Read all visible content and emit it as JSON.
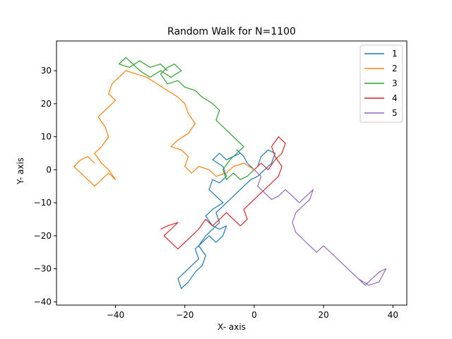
{
  "chart_data": {
    "type": "line",
    "title": "Random Walk for N=1100",
    "xlabel": "X- axis",
    "ylabel": "Y- axis",
    "xlim": [
      -57,
      44
    ],
    "ylim": [
      -41,
      39
    ],
    "xticks": [
      -40,
      -20,
      0,
      20,
      40
    ],
    "yticks": [
      -40,
      -30,
      -20,
      -10,
      0,
      10,
      20,
      30
    ],
    "grid": false,
    "legend": "top-right",
    "series": [
      {
        "name": "1",
        "color": "#1f77b4",
        "points": [
          [
            0,
            0
          ],
          [
            -2,
            2
          ],
          [
            -3,
            4
          ],
          [
            -5,
            6
          ],
          [
            -4,
            5
          ],
          [
            -6,
            4
          ],
          [
            -8,
            3
          ],
          [
            -10,
            5
          ],
          [
            -12,
            3
          ],
          [
            -9,
            1
          ],
          [
            -8,
            -2
          ],
          [
            -10,
            -4
          ],
          [
            -12,
            -3
          ],
          [
            -13,
            -6
          ],
          [
            -11,
            -8
          ],
          [
            -9,
            -10
          ],
          [
            -12,
            -12
          ],
          [
            -14,
            -14
          ],
          [
            -12,
            -17
          ],
          [
            -10,
            -18
          ],
          [
            -8,
            -17
          ],
          [
            -9,
            -20
          ],
          [
            -11,
            -22
          ],
          [
            -13,
            -20
          ],
          [
            -15,
            -22
          ],
          [
            -17,
            -24
          ],
          [
            -16,
            -27
          ],
          [
            -18,
            -29
          ],
          [
            -20,
            -31
          ],
          [
            -22,
            -33
          ],
          [
            -21,
            -36
          ],
          [
            -19,
            -34
          ],
          [
            -17,
            -31
          ],
          [
            -15,
            -29
          ],
          [
            -14,
            -26
          ],
          [
            -16,
            -23
          ],
          [
            -14,
            -20
          ],
          [
            -12,
            -18
          ],
          [
            -10,
            -16
          ],
          [
            -11,
            -13
          ],
          [
            -9,
            -11
          ],
          [
            -7,
            -9
          ],
          [
            -5,
            -7
          ],
          [
            -3,
            -5
          ],
          [
            -1,
            -3
          ],
          [
            1,
            -2
          ],
          [
            3,
            0
          ],
          [
            5,
            2
          ],
          [
            6,
            5
          ],
          [
            4,
            6
          ],
          [
            2,
            4
          ],
          [
            1,
            1
          ]
        ]
      },
      {
        "name": "2",
        "color": "#ff7f0e",
        "points": [
          [
            0,
            0
          ],
          [
            -3,
            2
          ],
          [
            -6,
            1
          ],
          [
            -8,
            -1
          ],
          [
            -11,
            -2
          ],
          [
            -13,
            0
          ],
          [
            -16,
            1
          ],
          [
            -18,
            -1
          ],
          [
            -20,
            1
          ],
          [
            -19,
            4
          ],
          [
            -21,
            6
          ],
          [
            -24,
            7
          ],
          [
            -22,
            9
          ],
          [
            -19,
            11
          ],
          [
            -17,
            14
          ],
          [
            -19,
            17
          ],
          [
            -20,
            20
          ],
          [
            -22,
            22
          ],
          [
            -25,
            24
          ],
          [
            -28,
            26
          ],
          [
            -31,
            28
          ],
          [
            -34,
            29
          ],
          [
            -37,
            30
          ],
          [
            -39,
            28
          ],
          [
            -41,
            26
          ],
          [
            -42,
            23
          ],
          [
            -40,
            21
          ],
          [
            -43,
            18
          ],
          [
            -45,
            16
          ],
          [
            -43,
            13
          ],
          [
            -42,
            10
          ],
          [
            -44,
            7
          ],
          [
            -46,
            5
          ],
          [
            -44,
            2
          ],
          [
            -42,
            0
          ],
          [
            -40,
            -3
          ],
          [
            -42,
            -1
          ],
          [
            -44,
            -3
          ],
          [
            -46,
            -5
          ],
          [
            -48,
            -3
          ],
          [
            -50,
            -1
          ],
          [
            -52,
            1
          ],
          [
            -50,
            3
          ],
          [
            -48,
            4
          ],
          [
            -46,
            2
          ]
        ]
      },
      {
        "name": "3",
        "color": "#2ca02c",
        "points": [
          [
            0,
            0
          ],
          [
            -2,
            -2
          ],
          [
            -4,
            -3
          ],
          [
            -6,
            -1
          ],
          [
            -8,
            -3
          ],
          [
            -9,
            0
          ],
          [
            -7,
            3
          ],
          [
            -5,
            5
          ],
          [
            -3,
            7
          ],
          [
            -5,
            9
          ],
          [
            -7,
            11
          ],
          [
            -9,
            13
          ],
          [
            -11,
            15
          ],
          [
            -10,
            18
          ],
          [
            -12,
            20
          ],
          [
            -15,
            22
          ],
          [
            -17,
            24
          ],
          [
            -20,
            25
          ],
          [
            -22,
            27
          ],
          [
            -25,
            26
          ],
          [
            -27,
            29
          ],
          [
            -25,
            31
          ],
          [
            -23,
            32
          ],
          [
            -21,
            30
          ],
          [
            -24,
            28
          ],
          [
            -27,
            30
          ],
          [
            -30,
            28
          ],
          [
            -33,
            30
          ],
          [
            -35,
            32
          ],
          [
            -37,
            34
          ],
          [
            -39,
            32
          ],
          [
            -36,
            31
          ],
          [
            -33,
            33
          ],
          [
            -30,
            31
          ],
          [
            -27,
            32
          ],
          [
            -25,
            30
          ]
        ]
      },
      {
        "name": "4",
        "color": "#d62728",
        "points": [
          [
            0,
            0
          ],
          [
            2,
            2
          ],
          [
            4,
            0
          ],
          [
            6,
            3
          ],
          [
            8,
            5
          ],
          [
            9,
            8
          ],
          [
            7,
            10
          ],
          [
            5,
            7
          ],
          [
            6,
            4
          ],
          [
            8,
            1
          ],
          [
            7,
            -2
          ],
          [
            5,
            -4
          ],
          [
            3,
            -6
          ],
          [
            1,
            -8
          ],
          [
            -1,
            -10
          ],
          [
            -3,
            -12
          ],
          [
            -2,
            -15
          ],
          [
            -4,
            -17
          ],
          [
            -6,
            -15
          ],
          [
            -8,
            -13
          ],
          [
            -10,
            -15
          ],
          [
            -12,
            -17
          ],
          [
            -14,
            -15
          ],
          [
            -16,
            -18
          ],
          [
            -18,
            -20
          ],
          [
            -20,
            -22
          ],
          [
            -22,
            -24
          ],
          [
            -24,
            -22
          ],
          [
            -26,
            -20
          ],
          [
            -24,
            -18
          ],
          [
            -22,
            -16
          ],
          [
            -25,
            -17
          ],
          [
            -27,
            -18
          ]
        ]
      },
      {
        "name": "5",
        "color": "#9467bd",
        "points": [
          [
            0,
            0
          ],
          [
            2,
            -2
          ],
          [
            1,
            -5
          ],
          [
            3,
            -7
          ],
          [
            5,
            -9
          ],
          [
            7,
            -8
          ],
          [
            9,
            -6
          ],
          [
            11,
            -8
          ],
          [
            13,
            -10
          ],
          [
            15,
            -8
          ],
          [
            17,
            -6
          ],
          [
            16,
            -9
          ],
          [
            14,
            -11
          ],
          [
            12,
            -13
          ],
          [
            11,
            -16
          ],
          [
            12,
            -19
          ],
          [
            14,
            -21
          ],
          [
            16,
            -23
          ],
          [
            18,
            -25
          ],
          [
            20,
            -23
          ],
          [
            22,
            -25
          ],
          [
            24,
            -27
          ],
          [
            26,
            -29
          ],
          [
            28,
            -31
          ],
          [
            30,
            -33
          ],
          [
            32,
            -35
          ],
          [
            34,
            -33
          ],
          [
            36,
            -31
          ],
          [
            38,
            -30
          ],
          [
            36,
            -34
          ],
          [
            33,
            -35
          ],
          [
            30,
            -33
          ]
        ]
      }
    ]
  }
}
